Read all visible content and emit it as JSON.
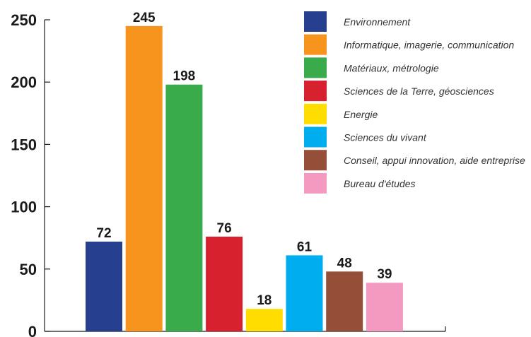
{
  "chart_data": {
    "type": "bar",
    "categories": [
      "Environnement",
      "Informatique, imagerie, communication",
      "Matériaux, métrologie",
      "Sciences de la Terre, géosciences",
      "Energie",
      "Sciences du vivant",
      "Conseil, appui innovation, aide entreprise",
      "Bureau d'études"
    ],
    "values": [
      72,
      245,
      198,
      76,
      18,
      61,
      48,
      39
    ],
    "colors": [
      "#263f8e",
      "#f7941d",
      "#3aab4a",
      "#d7212e",
      "#ffdd00",
      "#00aeef",
      "#954f38",
      "#f49ac1"
    ],
    "ylim": [
      0,
      250
    ],
    "yticks": [
      0,
      50,
      100,
      150,
      200,
      250
    ],
    "grid": false,
    "legend_position": "top-right",
    "title": "",
    "xlabel": "",
    "ylabel": ""
  }
}
